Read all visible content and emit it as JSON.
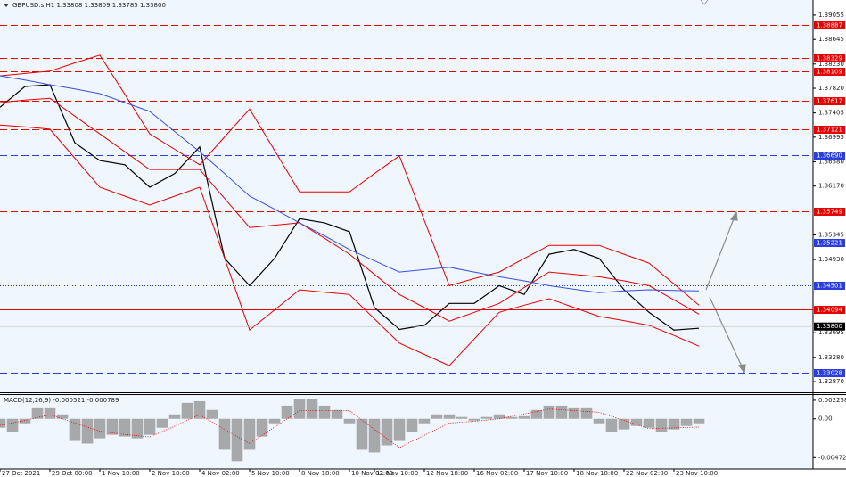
{
  "chart_data": [
    {
      "type": "line",
      "title": "GBPUSD.s,H1 1.33808 1.33809 1.33785 1.33800",
      "categories": [
        "27 Oct 2021",
        null,
        "29 Oct 00:00",
        null,
        "1 Nov 10:00",
        null,
        "2 Nov 18:00",
        null,
        "4 Nov 02:00",
        null,
        "5 Nov 10:00",
        null,
        "8 Nov 18:00",
        null,
        "10 Nov 02:00",
        "11 Nov 10:00",
        null,
        "12 Nov 18:00",
        null,
        "16 Nov 02:00",
        null,
        "17 Nov 10:00",
        null,
        "18 Nov 18:00",
        null,
        "22 Nov 02:00",
        null,
        "23 Nov 10:00",
        null
      ],
      "series": [
        {
          "color": "#000000",
          "values": [
            1.375,
            1.3785,
            1.3788,
            1.369,
            1.366,
            1.3653,
            1.3615,
            1.3638,
            1.3683,
            1.3495,
            1.3449,
            1.3495,
            1.3562,
            1.3555,
            1.354,
            1.3412,
            1.3375,
            1.3382,
            1.3419,
            1.3419,
            1.3449,
            1.3434,
            1.3502,
            1.351,
            1.3495,
            1.3442,
            1.3404,
            1.3374,
            1.3377
          ]
        },
        {
          "color": "#e60000",
          "values": [
            1.3803,
            1.3807,
            1.3811,
            1.3825,
            1.3838,
            1.3772,
            1.3705,
            1.3679,
            1.3653,
            1.37,
            1.3747,
            1.3677,
            1.3607,
            1.3607,
            1.3607,
            1.3638,
            1.3668,
            1.3559,
            1.3449,
            1.3461,
            1.3472,
            1.3495,
            1.3517,
            1.3517,
            1.3517,
            1.3502,
            1.3487,
            1.3452,
            1.3416
          ]
        },
        {
          "color": "#e60000",
          "values": [
            1.3758,
            1.3762,
            1.3765,
            1.3735,
            1.3705,
            1.3675,
            1.3645,
            1.3645,
            1.3645,
            1.3596,
            1.3547,
            1.3551,
            1.3555,
            1.3529,
            1.3502,
            1.3468,
            1.3434,
            1.3412,
            1.3389,
            1.3404,
            1.3419,
            1.3446,
            1.3472,
            1.3468,
            1.3464,
            1.3457,
            1.3449,
            1.3425,
            1.3401
          ]
        },
        {
          "color": "#e60000",
          "values": [
            1.372,
            1.3717,
            1.3713,
            1.3664,
            1.3615,
            1.36,
            1.3585,
            1.36,
            1.3615,
            1.3495,
            1.3374,
            1.3408,
            1.3442,
            1.3438,
            1.3434,
            1.3393,
            1.3352,
            1.3333,
            1.3314,
            1.3359,
            1.3404,
            1.3416,
            1.3427,
            1.3412,
            1.3397,
            1.339,
            1.3382,
            1.3365,
            1.3347
          ]
        },
        {
          "color": "#3a4fd8",
          "values": [
            1.3803,
            1.3796,
            1.3788,
            1.3781,
            1.3773,
            1.3758,
            1.3743,
            1.3709,
            1.3675,
            1.3638,
            1.36,
            1.3578,
            1.3555,
            1.3533,
            1.351,
            1.3491,
            1.3472,
            1.3476,
            1.348,
            1.3472,
            1.3464,
            1.3457,
            1.3449,
            1.3443,
            1.3437,
            1.344,
            1.3442,
            1.3441,
            1.344
          ]
        }
      ],
      "ylim": [
        1.3269,
        1.3931
      ],
      "yticks": [
        1.39055,
        1.38645,
        {
          "value": 1.3823,
          "label": "1.38230"
        },
        {
          "value": 1.3782,
          "label": "1.37820"
        },
        1.37405,
        1.36995,
        {
          "value": 1.3658,
          "label": "1.36580"
        },
        {
          "value": 1.3617,
          "label": "1.36170"
        },
        1.35345,
        {
          "value": 1.3493,
          "label": "1.34930"
        },
        1.33695,
        {
          "value": 1.3328,
          "label": "1.33280"
        },
        {
          "value": 1.3287,
          "label": "1.32870"
        }
      ],
      "levels": [
        {
          "value": 1.38887,
          "color": "#e60000",
          "style": "dashed"
        },
        {
          "value": 1.38329,
          "color": "#e60000",
          "style": "dashed"
        },
        {
          "value": 1.38109,
          "color": "#e60000",
          "style": "dashed"
        },
        {
          "value": 1.37617,
          "color": "#e60000",
          "style": "dashed"
        },
        {
          "value": 1.37121,
          "color": "#e60000",
          "style": "dashed"
        },
        {
          "value": {
            "value": 1.3669,
            "label": "1.36690"
          },
          "color": "#2a3ee0",
          "style": "dashed"
        },
        {
          "value": 1.35749,
          "color": "#e60000",
          "style": "dashed"
        },
        {
          "value": 1.35221,
          "color": "#2a3ee0",
          "style": "dashed"
        },
        {
          "value": 1.34501,
          "color": "#2a3ee0",
          "style": "dotted"
        },
        {
          "value": 1.34094,
          "color": "#e60000",
          "style": "solid"
        },
        {
          "value": 1.33028,
          "color": "#2a3ee0",
          "style": "dashed"
        }
      ],
      "last_price": {
        "value": 1.338,
        "label": "1.33800"
      }
    },
    {
      "type": "bar",
      "title": "MACD(12,26,9) -0.000521 -0.000789",
      "histogram": {
        "color": "#9a9a9a",
        "values": [
          -0.00108,
          -0.00161,
          -0.00054,
          0.00129,
          0.00129,
          0.00054,
          -0.00269,
          -0.00301,
          -0.00237,
          -0.00194,
          -0.00215,
          -0.00237,
          -0.00194,
          -0.00108,
          0.00054,
          0.00194,
          0.00215,
          0.00108,
          -0.00376,
          -0.00516,
          -0.00376,
          -0.00215,
          -0.00054,
          0.00161,
          0.00237,
          0.00237,
          0.00161,
          0.00108,
          -0.00054,
          -0.00376,
          -0.00409,
          -0.00323,
          -0.00269,
          -0.00161,
          -0.00054,
          0.00054,
          0.00054,
          0.00022,
          -0.00022,
          0.00022,
          0.00054,
          0.00022,
          0.00032,
          0.00108,
          0.00161,
          0.00161,
          0.00129,
          0.00129,
          -0.00054,
          -0.00161,
          -0.00129,
          -0.00086,
          -0.00108,
          -0.00161,
          -0.00129,
          -0.00086,
          -0.00054
        ]
      },
      "signal": {
        "color": "#e60000",
        "values": [
          -0.0008,
          -0.0002,
          0.0005,
          -0.0005,
          -0.0015,
          -0.0019,
          -0.0022,
          -0.0009,
          0.0005,
          -0.0013,
          -0.003,
          -0.001,
          0.001,
          0.001,
          0.001,
          -0.0013,
          -0.0035,
          -0.002,
          -0.0005,
          -0.0003,
          0.0,
          0.0006,
          0.0012,
          0.001,
          0.0008,
          -0.0002,
          -0.0012,
          -0.0011,
          -0.001
        ]
      },
      "ylim": [
        -0.0061,
        0.0029
      ],
      "yticks": [
        0.002258,
        {
          "value": 0,
          "label": "0.00"
        },
        -0.004723
      ]
    }
  ]
}
